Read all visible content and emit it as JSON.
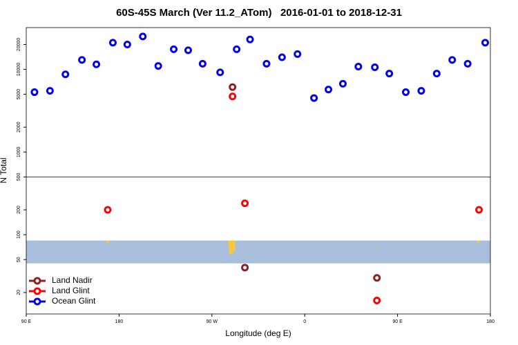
{
  "chart_data": {
    "type": "scatter",
    "title": "60S-45S March (Ver 11.2_ATom)   2016-01-01 to 2018-12-31",
    "x_label": "Longitude (deg E)",
    "y_label": "N Total",
    "yscale": "log",
    "xlim": [
      90,
      540
    ],
    "ylim": [
      11,
      32000
    ],
    "xticks": [
      {
        "value": 90,
        "label": "90 E"
      },
      180,
      {
        "value": 270,
        "label": "90 W"
      },
      {
        "value": 360,
        "label": "0"
      },
      {
        "value": 450,
        "label": "90 E"
      },
      {
        "value": 540,
        "label": "180"
      }
    ],
    "yticks": [
      20,
      50,
      100,
      200,
      500,
      1000,
      2000,
      5000,
      10000,
      20000
    ],
    "hline": 500,
    "band": [
      45,
      85
    ],
    "band_color": "#a8bedd",
    "legend": "bottom-left",
    "series": [
      {
        "name": "Land Nadir",
        "color": "#8b2020",
        "x": [
          290,
          302,
          430
        ],
        "values": [
          6100,
          40,
          30
        ]
      },
      {
        "name": "Land Glint",
        "color": "#ff0000",
        "x": [
          290,
          169,
          302,
          529,
          430
        ],
        "values": [
          4700,
          200,
          240,
          200,
          16
        ]
      },
      {
        "name": "Ocean Glint",
        "color": "#0000ee",
        "x": [
          98,
          113,
          128,
          144,
          158,
          174,
          188,
          203,
          218,
          233,
          247,
          261,
          278,
          294,
          307,
          323,
          338,
          353,
          369,
          383,
          397,
          412,
          428,
          442,
          458,
          473,
          488,
          503,
          518,
          535
        ],
        "values": [
          5300,
          5500,
          8700,
          13000,
          11500,
          21000,
          20000,
          25000,
          11000,
          17500,
          17000,
          11700,
          9200,
          17500,
          23000,
          11700,
          14000,
          15300,
          4500,
          5700,
          6700,
          10800,
          10600,
          8900,
          5300,
          5500,
          8900,
          13000,
          11700,
          21000
        ]
      }
    ]
  }
}
